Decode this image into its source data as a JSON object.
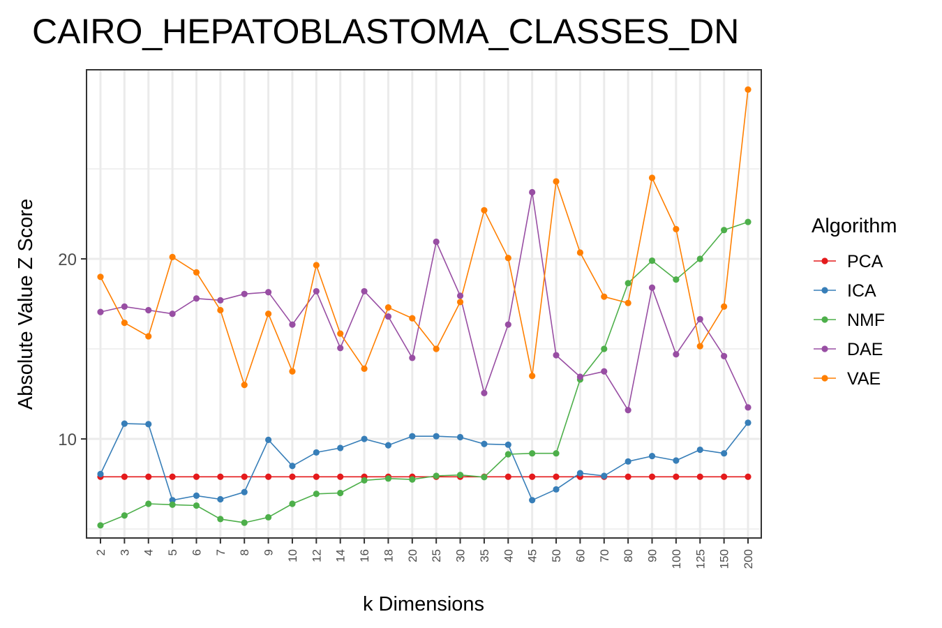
{
  "chart_data": {
    "type": "line",
    "title": "CAIRO_HEPATOBLASTOMA_CLASSES_DN",
    "xlabel": "k Dimensions",
    "ylabel": "Absolute Value Z Score",
    "ylim": [
      4.5,
      30.5
    ],
    "yticks": [
      10,
      20
    ],
    "grid": true,
    "legend": {
      "title": "Algorithm",
      "placement": "right"
    },
    "categories": [
      "2",
      "3",
      "4",
      "5",
      "6",
      "7",
      "8",
      "9",
      "10",
      "12",
      "14",
      "16",
      "18",
      "20",
      "25",
      "30",
      "35",
      "40",
      "45",
      "50",
      "60",
      "70",
      "80",
      "90",
      "100",
      "125",
      "150",
      "200"
    ],
    "series": [
      {
        "name": "PCA",
        "color": "#e41a1c",
        "values": [
          7.9,
          7.9,
          7.9,
          7.9,
          7.9,
          7.9,
          7.9,
          7.9,
          7.9,
          7.9,
          7.9,
          7.9,
          7.9,
          7.9,
          7.9,
          7.9,
          7.9,
          7.9,
          7.9,
          7.9,
          7.9,
          7.9,
          7.9,
          7.9,
          7.9,
          7.9,
          7.9,
          7.9
        ]
      },
      {
        "name": "ICA",
        "color": "#377eb8",
        "values": [
          8.05,
          10.85,
          10.82,
          6.6,
          6.85,
          6.65,
          7.05,
          9.95,
          8.5,
          9.25,
          9.5,
          10.0,
          9.65,
          10.15,
          10.15,
          10.1,
          9.72,
          9.68,
          6.6,
          7.2,
          8.1,
          7.95,
          8.75,
          9.05,
          8.8,
          9.4,
          9.2,
          10.9
        ]
      },
      {
        "name": "NMF",
        "color": "#4daf4a",
        "values": [
          5.2,
          5.75,
          6.4,
          6.35,
          6.3,
          5.55,
          5.35,
          5.65,
          6.4,
          6.95,
          7.0,
          7.7,
          7.8,
          7.75,
          7.95,
          8.0,
          7.88,
          9.15,
          9.2,
          9.2,
          13.3,
          15.0,
          18.65,
          19.9,
          18.85,
          20.0,
          21.6,
          22.05
        ]
      },
      {
        "name": "DAE",
        "color": "#984ea3",
        "values": [
          17.05,
          17.35,
          17.15,
          16.95,
          17.8,
          17.7,
          18.05,
          18.15,
          16.35,
          18.2,
          15.05,
          18.2,
          16.8,
          14.5,
          20.95,
          17.95,
          12.55,
          16.35,
          23.7,
          14.65,
          13.45,
          13.75,
          11.6,
          18.4,
          14.7,
          16.65,
          14.6,
          11.75
        ]
      },
      {
        "name": "VAE",
        "color": "#ff7f00",
        "values": [
          19.0,
          16.45,
          15.7,
          20.1,
          19.25,
          17.15,
          13.0,
          16.95,
          13.75,
          19.65,
          15.85,
          13.9,
          17.3,
          16.7,
          15.0,
          17.6,
          22.7,
          20.05,
          13.5,
          24.3,
          20.35,
          17.9,
          17.55,
          24.5,
          21.65,
          15.15,
          17.35,
          29.4
        ]
      }
    ]
  }
}
